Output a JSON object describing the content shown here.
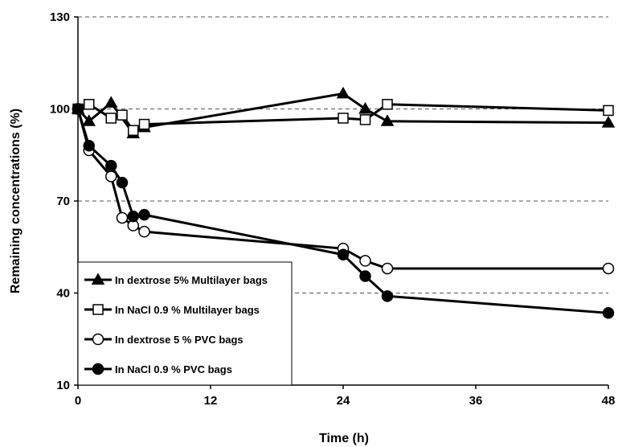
{
  "chart_data": {
    "type": "line",
    "xlabel": "Time (h)",
    "ylabel": "Remaining concentrations (%)",
    "xlim": [
      0,
      48
    ],
    "ylim": [
      10,
      130
    ],
    "xticks": [
      0,
      12,
      24,
      36,
      48
    ],
    "yticks": [
      10,
      40,
      70,
      100,
      130
    ],
    "grid": "horizontal dashed",
    "legend_position": "bottom-left",
    "series": [
      {
        "name": "In dextrose 5% Multilayer bags",
        "marker": "triangle",
        "fill": "#000000",
        "x": [
          0,
          1,
          3,
          5,
          6,
          24,
          26,
          28,
          48
        ],
        "y": [
          100,
          96,
          102,
          92,
          94,
          105,
          100,
          96,
          95.5
        ]
      },
      {
        "name": "In NaCl 0.9 % Multilayer bags",
        "marker": "square",
        "fill": "#ffffff",
        "x": [
          0,
          1,
          3,
          4,
          5,
          6,
          24,
          26,
          28,
          48
        ],
        "y": [
          100,
          101.5,
          97,
          98,
          93,
          95,
          97,
          96.5,
          101.5,
          99.5
        ]
      },
      {
        "name": "In dextrose 5 % PVC bags",
        "marker": "circle",
        "fill": "#ffffff",
        "x": [
          0,
          1,
          3,
          4,
          5,
          6,
          24,
          26,
          28,
          48
        ],
        "y": [
          100,
          86.5,
          78,
          64.5,
          62,
          60,
          54.5,
          50.5,
          48,
          48
        ]
      },
      {
        "name": "In NaCl 0.9 % PVC bags",
        "marker": "circle",
        "fill": "#000000",
        "x": [
          0,
          1,
          3,
          4,
          5,
          6,
          24,
          26,
          28,
          48
        ],
        "y": [
          100,
          88,
          81.5,
          76,
          65,
          65.5,
          52.5,
          45.5,
          39,
          33.5
        ]
      }
    ]
  }
}
